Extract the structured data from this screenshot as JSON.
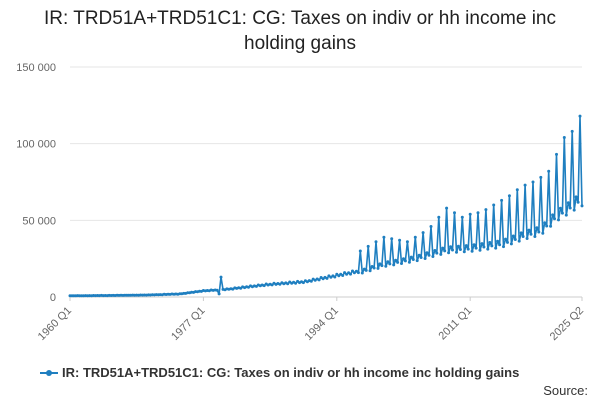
{
  "title": "IR: TRD51A+TRD51C1: CG: Taxes on indiv or hh income inc holding gains",
  "legend_label": "IR: TRD51A+TRD51C1: CG: Taxes on indiv or hh income inc holding gains",
  "source_label": "Source:",
  "colors": {
    "series": "#1f7fc0",
    "grid": "#e6e6e6",
    "axis": "#cccccc"
  },
  "chart_data": {
    "type": "line",
    "title": "IR: TRD51A+TRD51C1: CG: Taxes on indiv or hh income inc holding gains",
    "frequency": "quarterly",
    "x_start": "1960 Q1",
    "x_end": "2025 Q2",
    "x_tick_labels": [
      "1960 Q1",
      "1977 Q1",
      "1994 Q1",
      "2011 Q1",
      "2025 Q2"
    ],
    "y_ticks": [
      0,
      50000,
      100000,
      150000
    ],
    "y_tick_labels": [
      "0",
      "50 000",
      "100 000",
      "150 000"
    ],
    "ylim": [
      0,
      150000
    ],
    "grid": true,
    "legend_position": "bottom",
    "annual_anchor_values": [
      {
        "year": 1960,
        "value": 800
      },
      {
        "year": 1965,
        "value": 1000
      },
      {
        "year": 1970,
        "value": 1300
      },
      {
        "year": 1974,
        "value": 2000
      },
      {
        "year": 1977,
        "value": 4000
      },
      {
        "year": 1980,
        "value": 5000
      },
      {
        "year": 1985,
        "value": 8000
      },
      {
        "year": 1990,
        "value": 10000
      },
      {
        "year": 1994,
        "value": 14000
      },
      {
        "year": 1997,
        "value": 17000
      },
      {
        "year": 2000,
        "value": 22000
      },
      {
        "year": 2004,
        "value": 26000
      },
      {
        "year": 2008,
        "value": 32000
      },
      {
        "year": 2011,
        "value": 33000
      },
      {
        "year": 2015,
        "value": 36000
      },
      {
        "year": 2018,
        "value": 42000
      },
      {
        "year": 2020,
        "value": 45000
      },
      {
        "year": 2022,
        "value": 55000
      },
      {
        "year": 2024,
        "value": 62000
      },
      {
        "year": 2025,
        "value": 66000
      }
    ],
    "annual_peaks": [
      {
        "year": 1997,
        "value": 30000
      },
      {
        "year": 1998,
        "value": 33000
      },
      {
        "year": 1999,
        "value": 36000
      },
      {
        "year": 2000,
        "value": 39000
      },
      {
        "year": 2001,
        "value": 38000
      },
      {
        "year": 2002,
        "value": 37000
      },
      {
        "year": 2003,
        "value": 36000
      },
      {
        "year": 2004,
        "value": 39000
      },
      {
        "year": 2005,
        "value": 42000
      },
      {
        "year": 2006,
        "value": 46000
      },
      {
        "year": 2007,
        "value": 52000
      },
      {
        "year": 2008,
        "value": 58000
      },
      {
        "year": 2009,
        "value": 55000
      },
      {
        "year": 2010,
        "value": 52000
      },
      {
        "year": 2011,
        "value": 54000
      },
      {
        "year": 2012,
        "value": 55000
      },
      {
        "year": 2013,
        "value": 57000
      },
      {
        "year": 2014,
        "value": 60000
      },
      {
        "year": 2015,
        "value": 63000
      },
      {
        "year": 2016,
        "value": 66000
      },
      {
        "year": 2017,
        "value": 70000
      },
      {
        "year": 2018,
        "value": 73000
      },
      {
        "year": 2019,
        "value": 75000
      },
      {
        "year": 2020,
        "value": 78000
      },
      {
        "year": 2021,
        "value": 82000
      },
      {
        "year": 2022,
        "value": 93000
      },
      {
        "year": 2023,
        "value": 104000
      },
      {
        "year": 2024,
        "value": 108000
      },
      {
        "year": 2025,
        "value": 118000
      }
    ],
    "outliers": [
      {
        "period": "1979 Q1",
        "value": 2000
      },
      {
        "period": "1979 Q2",
        "value": 13000
      }
    ]
  }
}
